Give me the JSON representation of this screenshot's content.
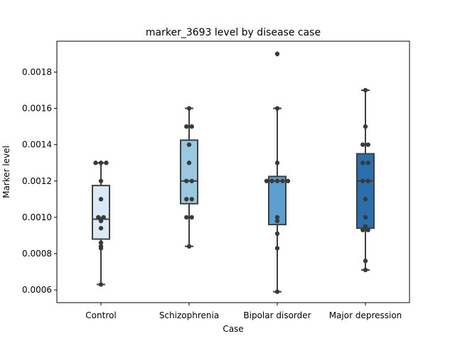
{
  "chart_data": {
    "type": "box",
    "title": "marker_3693 level by disease case",
    "xlabel": "Case",
    "ylabel": "Marker level",
    "ylim": [
      0.00053,
      0.00197
    ],
    "yticks": [
      "0.0006",
      "0.0008",
      "0.0010",
      "0.0012",
      "0.0014",
      "0.0016",
      "0.0018"
    ],
    "ytick_values": [
      0.0006,
      0.0008,
      0.001,
      0.0012,
      0.0014,
      0.0016,
      0.0018
    ],
    "categories": [
      "Control",
      "Schizophrenia",
      "Bipolar disorder",
      "Major depression"
    ],
    "colors": [
      "#dbe9f6",
      "#9ac8e0",
      "#5a9fcf",
      "#2a6ead"
    ],
    "point_color": "#3a3a3a",
    "boxes": [
      {
        "q1": 0.00088,
        "median": 0.00099,
        "q3": 0.001175,
        "whisker_low": 0.00063,
        "whisker_high": 0.0013,
        "outliers": []
      },
      {
        "q1": 0.001075,
        "median": 0.0012,
        "q3": 0.001425,
        "whisker_low": 0.00084,
        "whisker_high": 0.0016,
        "outliers": []
      },
      {
        "q1": 0.00096,
        "median": 0.0012,
        "q3": 0.001225,
        "whisker_low": 0.00059,
        "whisker_high": 0.0016,
        "outliers": [
          0.0019
        ]
      },
      {
        "q1": 0.00094,
        "median": 0.0012,
        "q3": 0.00135,
        "whisker_low": 0.00071,
        "whisker_high": 0.0017,
        "outliers": []
      }
    ],
    "points": [
      [
        0.0013,
        0.0013,
        0.0013,
        0.0012,
        0.0011,
        0.001,
        0.001,
        0.00099,
        0.00098,
        0.00094,
        0.00086,
        0.00084,
        0.00083,
        0.00063
      ],
      [
        0.0016,
        0.0015,
        0.0015,
        0.0014,
        0.0013,
        0.0012,
        0.0012,
        0.0011,
        0.0011,
        0.001,
        0.001,
        0.00084
      ],
      [
        0.0019,
        0.0016,
        0.0013,
        0.0012,
        0.0012,
        0.0012,
        0.0012,
        0.0012,
        0.001,
        0.00098,
        0.00091,
        0.00083,
        0.00059
      ],
      [
        0.0017,
        0.0015,
        0.0014,
        0.0014,
        0.0013,
        0.0013,
        0.0012,
        0.0012,
        0.0011,
        0.001,
        0.00095,
        0.00093,
        0.00093,
        0.00076,
        0.00071
      ]
    ],
    "grid": false,
    "legend": "none"
  }
}
